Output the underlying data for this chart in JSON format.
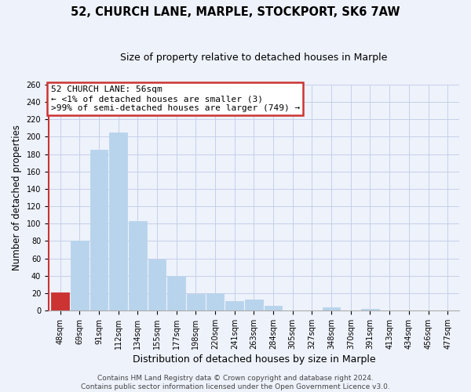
{
  "title": "52, CHURCH LANE, MARPLE, STOCKPORT, SK6 7AW",
  "subtitle": "Size of property relative to detached houses in Marple",
  "xlabel": "Distribution of detached houses by size in Marple",
  "ylabel": "Number of detached properties",
  "bin_labels": [
    "48sqm",
    "69sqm",
    "91sqm",
    "112sqm",
    "134sqm",
    "155sqm",
    "177sqm",
    "198sqm",
    "220sqm",
    "241sqm",
    "263sqm",
    "284sqm",
    "305sqm",
    "327sqm",
    "348sqm",
    "370sqm",
    "391sqm",
    "413sqm",
    "434sqm",
    "456sqm",
    "477sqm"
  ],
  "bar_values": [
    21,
    80,
    185,
    205,
    103,
    59,
    40,
    19,
    20,
    11,
    13,
    5,
    0,
    0,
    4,
    0,
    2,
    0,
    0,
    0,
    0
  ],
  "bar_color": "#b8d4ec",
  "highlight_bar_color": "#cc3333",
  "highlight_bar_index": 0,
  "ylim": [
    0,
    260
  ],
  "yticks": [
    0,
    20,
    40,
    60,
    80,
    100,
    120,
    140,
    160,
    180,
    200,
    220,
    240,
    260
  ],
  "annotation_line1": "52 CHURCH LANE: 56sqm",
  "annotation_line2": "← <1% of detached houses are smaller (3)",
  "annotation_line3": ">99% of semi-detached houses are larger (749) →",
  "footer_text": "Contains HM Land Registry data © Crown copyright and database right 2024.\nContains public sector information licensed under the Open Government Licence v3.0.",
  "bg_color": "#eef2fb",
  "grid_color": "#c5cfe8",
  "title_fontsize": 10.5,
  "subtitle_fontsize": 9,
  "ylabel_fontsize": 8.5,
  "xlabel_fontsize": 9,
  "tick_fontsize": 7,
  "annot_fontsize": 8,
  "footer_fontsize": 6.5
}
